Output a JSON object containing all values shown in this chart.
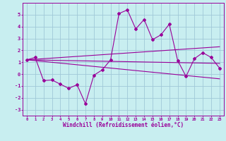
{
  "xlabel": "Windchill (Refroidissement éolien,°C)",
  "bg_color": "#c8eef0",
  "grid_color": "#a0c8d8",
  "line_color": "#990099",
  "xlim": [
    -0.5,
    23.5
  ],
  "ylim": [
    -3.5,
    6.0
  ],
  "xticks": [
    0,
    1,
    2,
    3,
    4,
    5,
    6,
    7,
    8,
    9,
    10,
    11,
    12,
    13,
    14,
    15,
    16,
    17,
    18,
    19,
    20,
    21,
    22,
    23
  ],
  "yticks": [
    -3,
    -2,
    -1,
    0,
    1,
    2,
    3,
    4,
    5
  ],
  "series1_x": [
    0,
    1,
    2,
    3,
    4,
    5,
    6,
    7,
    8,
    9,
    10,
    11,
    12,
    13,
    14,
    15,
    16,
    17,
    18,
    19,
    20,
    21,
    22,
    23
  ],
  "series1_y": [
    1.2,
    1.4,
    -0.55,
    -0.5,
    -0.85,
    -1.2,
    -0.9,
    -2.5,
    -0.1,
    0.35,
    1.2,
    5.1,
    5.4,
    3.8,
    4.6,
    2.9,
    3.3,
    4.2,
    1.15,
    -0.2,
    1.3,
    1.8,
    1.4,
    0.5
  ],
  "series2_x": [
    0,
    23
  ],
  "series2_y": [
    1.2,
    2.3
  ],
  "series3_x": [
    0,
    23
  ],
  "series3_y": [
    1.2,
    -0.4
  ],
  "series4_x": [
    0,
    23
  ],
  "series4_y": [
    1.2,
    0.9
  ]
}
